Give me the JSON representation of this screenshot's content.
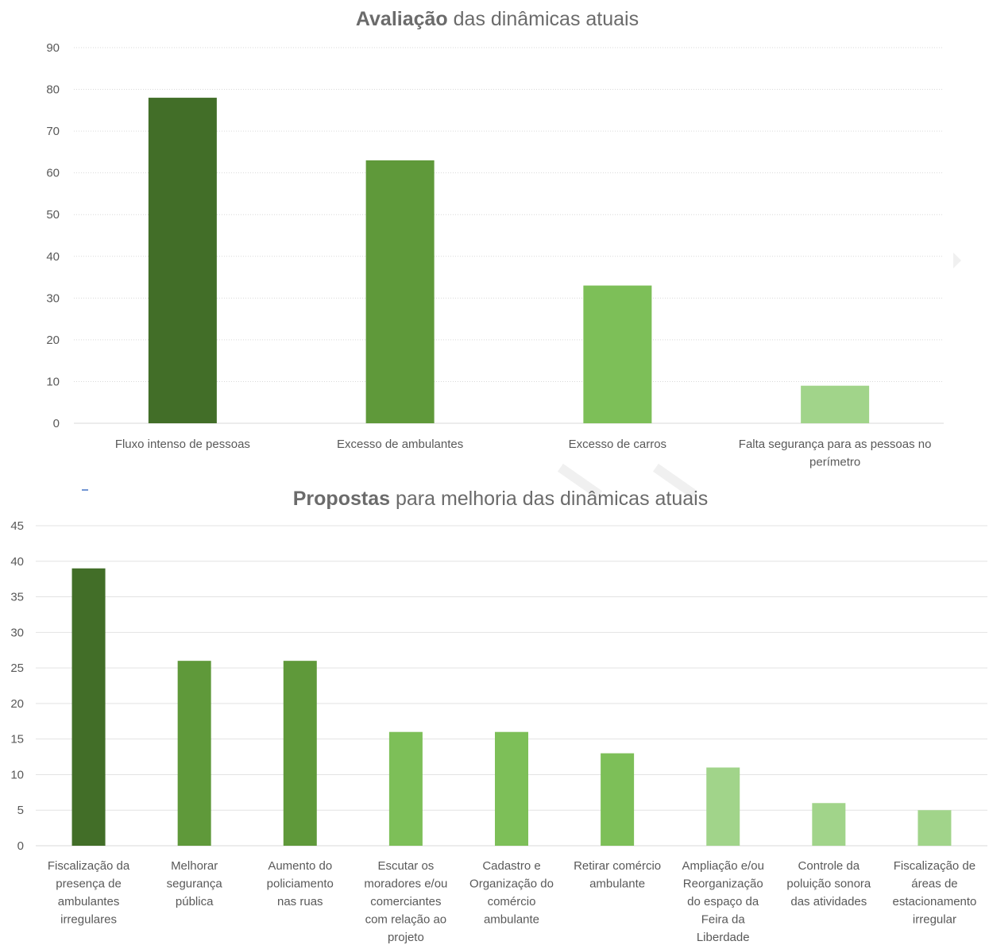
{
  "chart_data": [
    {
      "type": "bar",
      "title_bold": "Avaliação",
      "title_rest": " das dinâmicas atuais",
      "categories": [
        [
          "Fluxo intenso de pessoas"
        ],
        [
          "Excesso de ambulantes"
        ],
        [
          "Excesso de carros"
        ],
        [
          "Falta segurança para as pessoas no",
          "perímetro"
        ]
      ],
      "values": [
        78,
        63,
        33,
        9
      ],
      "colors": [
        "#426e28",
        "#5f993a",
        "#7dbf58",
        "#a1d48a"
      ],
      "ylim": [
        0,
        90
      ],
      "yticks": [
        0,
        10,
        20,
        30,
        40,
        50,
        60,
        70,
        80,
        90
      ],
      "grid": true,
      "legend": "none"
    },
    {
      "type": "bar",
      "title_bold": "Propostas",
      "title_rest": " para melhoria das dinâmicas atuais",
      "categories": [
        [
          "Fiscalização da",
          "presença de",
          "ambulantes",
          "irregulares"
        ],
        [
          "Melhorar",
          "segurança",
          "pública"
        ],
        [
          "Aumento do",
          "policiamento",
          "nas ruas"
        ],
        [
          "Escutar os",
          "moradores e/ou",
          "comerciantes",
          "com relação ao",
          "projeto"
        ],
        [
          "Cadastro e",
          "Organização do",
          "comércio",
          "ambulante"
        ],
        [
          "Retirar comércio",
          "ambulante"
        ],
        [
          "Ampliação e/ou",
          "Reorganização",
          "do espaço da",
          "Feira da",
          "Liberdade"
        ],
        [
          "Controle da",
          "poluição sonora",
          "das atividades"
        ],
        [
          "Fiscalização de",
          "áreas de",
          "estacionamento",
          "irregular"
        ]
      ],
      "values": [
        39,
        26,
        26,
        16,
        16,
        13,
        11,
        6,
        5
      ],
      "colors": [
        "#426e28",
        "#5f993a",
        "#5f993a",
        "#7dbf58",
        "#7dbf58",
        "#7dbf58",
        "#a1d48a",
        "#a1d48a",
        "#a1d48a"
      ],
      "ylim": [
        0,
        45
      ],
      "yticks": [
        0,
        5,
        10,
        15,
        20,
        25,
        30,
        35,
        40,
        45
      ],
      "grid": true,
      "legend": "none"
    }
  ]
}
